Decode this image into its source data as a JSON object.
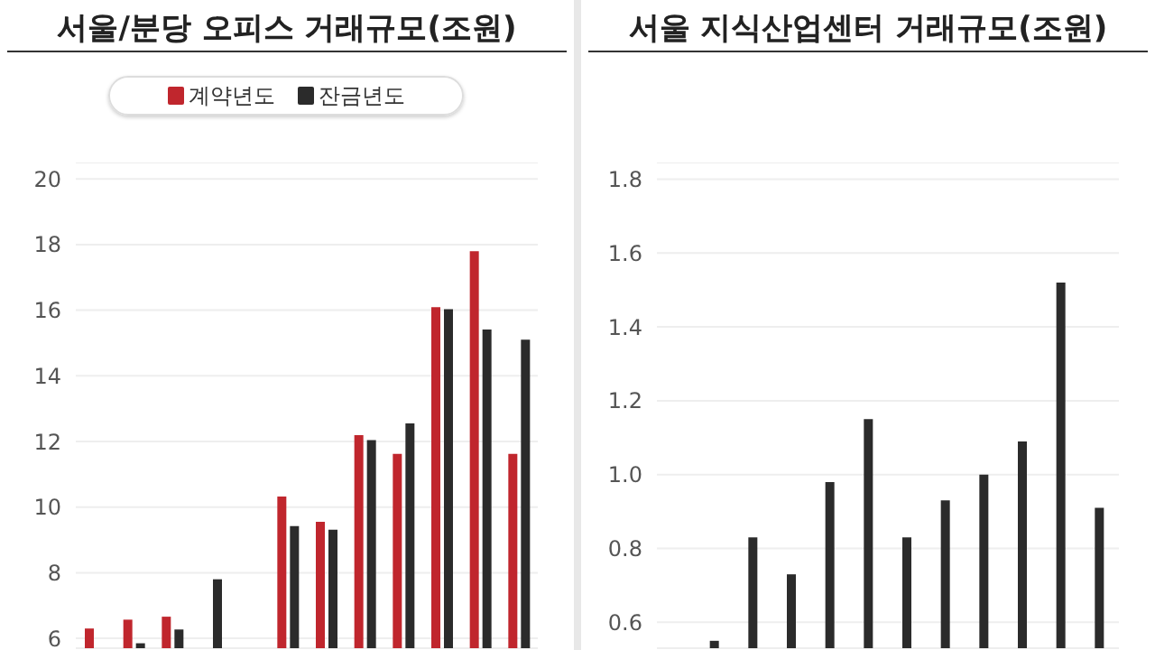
{
  "chart_data": [
    {
      "type": "bar",
      "title": "서울/분당 오피스 거래규모(조원)",
      "categories": [
        null,
        null,
        null,
        null,
        null,
        null,
        null,
        null,
        null,
        null,
        null,
        null
      ],
      "series": [
        {
          "name": "계약년도",
          "color": "#c0262d",
          "values": [
            6.3,
            6.57,
            6.66,
            null,
            null,
            10.32,
            9.55,
            12.19,
            11.62,
            16.09,
            17.8,
            11.62
          ]
        },
        {
          "name": "잔금년도",
          "color": "#2b2b2b",
          "values": [
            null,
            5.85,
            6.27,
            7.8,
            null,
            9.42,
            9.31,
            12.04,
            12.55,
            16.03,
            15.41,
            15.1
          ]
        }
      ],
      "ylim": [
        5.7,
        20.5
      ],
      "yticks": [
        6,
        8,
        10,
        12,
        14,
        16,
        18,
        20
      ],
      "grid": "y",
      "legend": "top"
    },
    {
      "type": "bar",
      "title": "서울 지식산업센터 거래규모(조원)",
      "categories": [
        null,
        null,
        null,
        null,
        null,
        null,
        null,
        null,
        null,
        null,
        null,
        null
      ],
      "series": [
        {
          "color": "#2b2b2b",
          "values": [
            null,
            0.55,
            0.83,
            0.73,
            0.98,
            1.15,
            0.83,
            0.93,
            1.0,
            1.09,
            1.52,
            0.91
          ]
        }
      ],
      "ylim": [
        0.53,
        1.845
      ],
      "yticks": [
        0.6,
        0.8,
        {
          "value": 1,
          "label": "1.0"
        },
        1.2,
        1.4,
        1.6,
        1.8
      ],
      "grid": "y"
    }
  ]
}
